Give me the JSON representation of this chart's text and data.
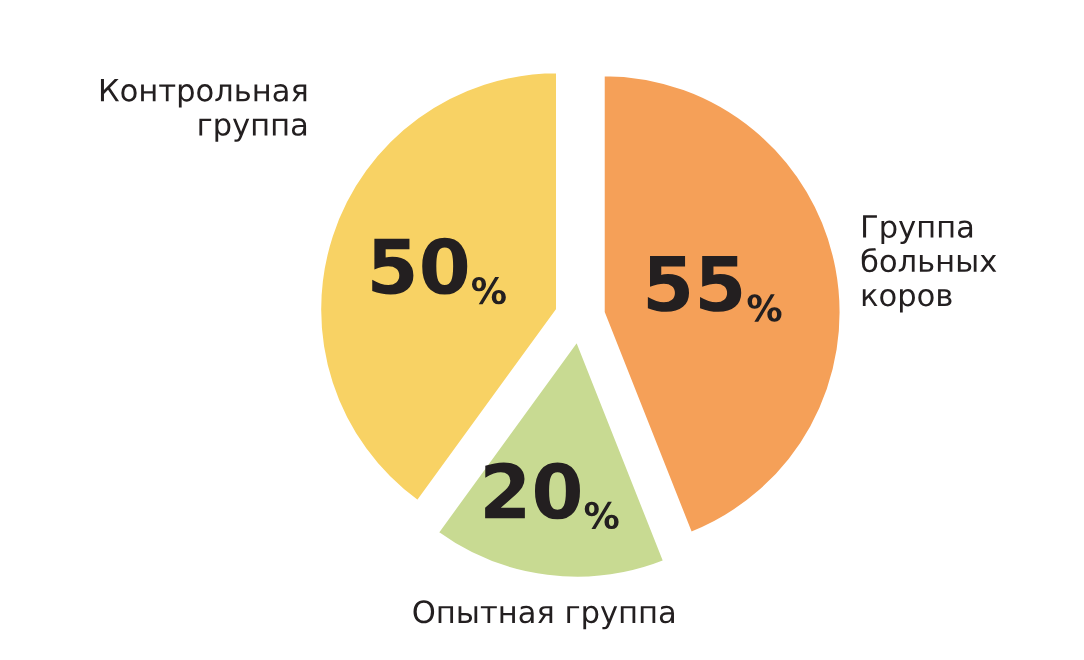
{
  "chart_data": {
    "type": "pie",
    "categories": [
      "Группа\nбольных\nкоров",
      "Опытная группа",
      "Контрольная\nгруппа"
    ],
    "values": [
      55,
      20,
      50
    ],
    "colors": [
      "#f5a058",
      "#c8da92",
      "#f8d264"
    ],
    "value_labels": [
      "55%",
      "20%",
      "50%"
    ]
  }
}
